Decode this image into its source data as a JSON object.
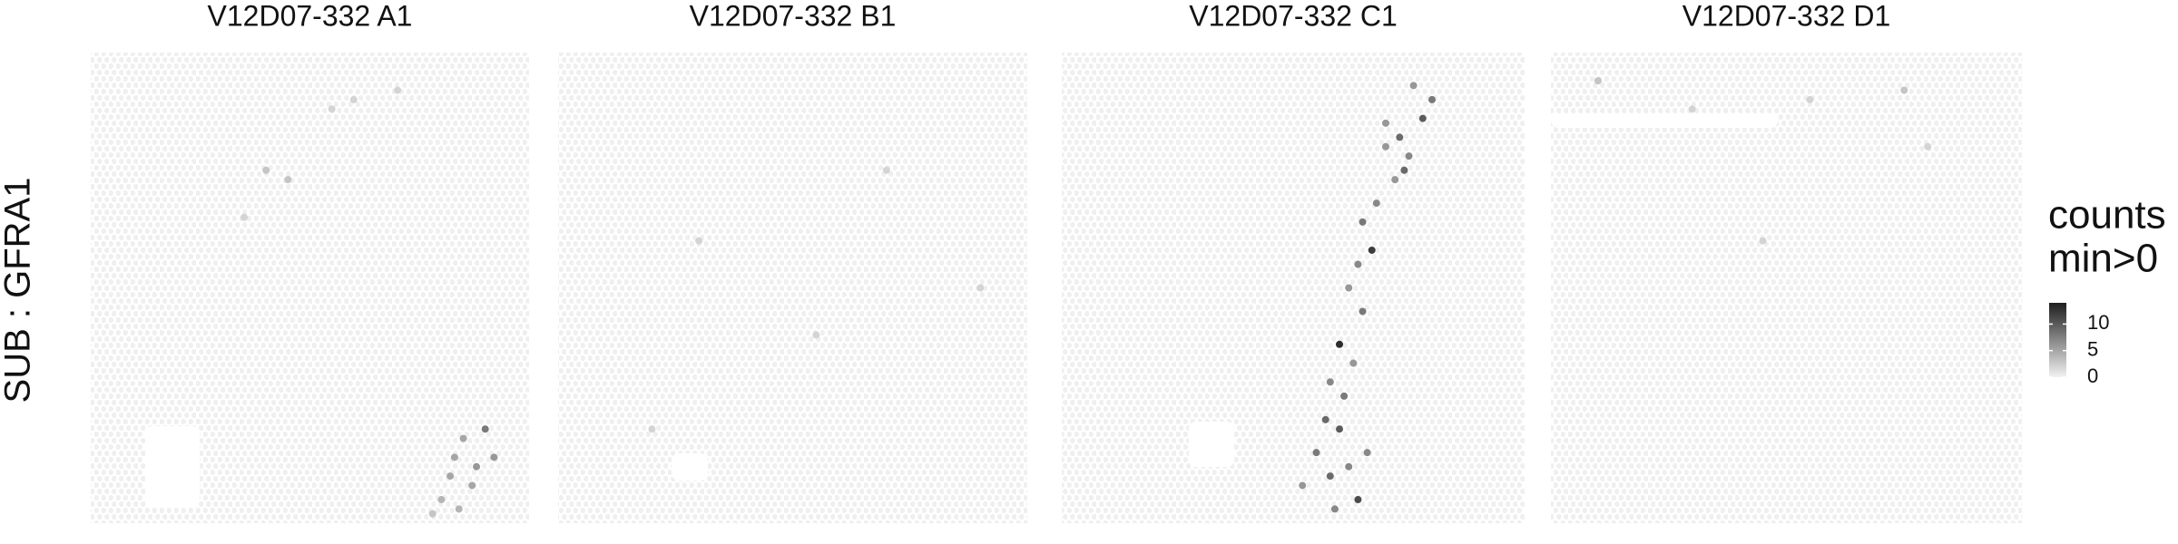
{
  "chart_data": {
    "type": "spatial",
    "ylabel": "SUB : GFRA1",
    "legend_title": [
      "counts",
      "min>0"
    ],
    "clim": [
      0,
      14
    ],
    "cticks": [
      0,
      5,
      10
    ],
    "xlim": [
      0,
      100
    ],
    "ylim": [
      0,
      100
    ],
    "panels": [
      {
        "title": "V12D07-332  A1",
        "x": [
          40,
          45,
          55,
          35,
          60,
          70,
          85,
          88,
          82,
          80,
          90,
          84,
          87,
          78,
          92,
          83
        ],
        "y": [
          25,
          27,
          12,
          35,
          10,
          8,
          82,
          88,
          90,
          95,
          80,
          97,
          92,
          98,
          86,
          86
        ],
        "values": [
          3,
          3,
          2,
          2,
          2,
          2,
          5,
          6,
          5,
          4,
          8,
          4,
          5,
          3,
          6,
          5
        ]
      },
      {
        "title": "V12D07-332  B1",
        "x": [
          30,
          55,
          70,
          20,
          90
        ],
        "y": [
          40,
          60,
          25,
          80,
          50
        ],
        "values": [
          2,
          2,
          2,
          2,
          2
        ]
      },
      {
        "title": "V12D07-332  C1",
        "x": [
          76,
          80,
          78,
          73,
          75,
          70,
          72,
          68,
          65,
          67,
          64,
          62,
          65,
          60,
          63,
          58,
          61,
          57,
          60,
          55,
          62,
          58,
          64,
          52,
          59,
          66,
          70,
          74
        ],
        "y": [
          7,
          10,
          14,
          18,
          22,
          20,
          27,
          32,
          36,
          42,
          45,
          50,
          55,
          62,
          66,
          70,
          73,
          78,
          80,
          85,
          88,
          90,
          95,
          92,
          97,
          85,
          15,
          25
        ],
        "values": [
          6,
          8,
          10,
          9,
          7,
          6,
          6,
          7,
          8,
          12,
          7,
          6,
          8,
          13,
          6,
          7,
          8,
          9,
          10,
          8,
          7,
          9,
          11,
          6,
          7,
          7,
          6,
          9
        ]
      },
      {
        "title": "V12D07-332  D1",
        "x": [
          10,
          30,
          55,
          75,
          80,
          45
        ],
        "y": [
          6,
          12,
          10,
          8,
          20,
          40
        ],
        "values": [
          3,
          2,
          2,
          3,
          2,
          2
        ]
      }
    ]
  }
}
